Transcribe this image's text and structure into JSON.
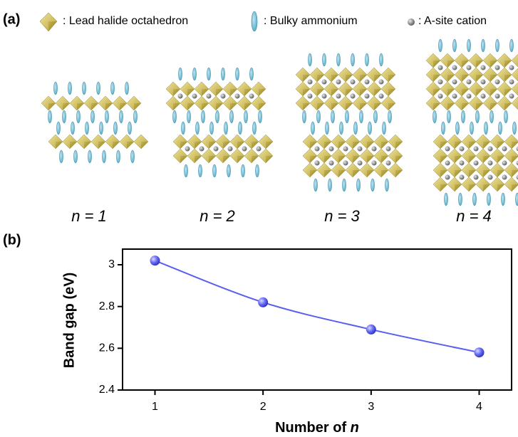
{
  "panel_a": {
    "label": "(a)",
    "legend": [
      ": Lead halide octahedron",
      ": Bulky ammonium",
      ": A-site cation"
    ],
    "structures": [
      "n = 1",
      "n = 2",
      "n = 3",
      "n = 4"
    ]
  },
  "chart_data": {
    "type": "line",
    "label": "(b)",
    "x": [
      1,
      2,
      3,
      4
    ],
    "values": [
      3.02,
      2.82,
      2.69,
      2.58
    ],
    "color": "#5a5ef0",
    "xlim": [
      0.7,
      4.3
    ],
    "xticks": [
      1,
      2,
      3,
      4
    ],
    "ylim": [
      2.4,
      3.075
    ],
    "yticks": [
      2.4,
      2.6,
      2.8,
      3.0
    ],
    "ylabel": "Band gap (eV)",
    "xlabel": {
      "text": "Number of",
      "variable": "n"
    }
  }
}
